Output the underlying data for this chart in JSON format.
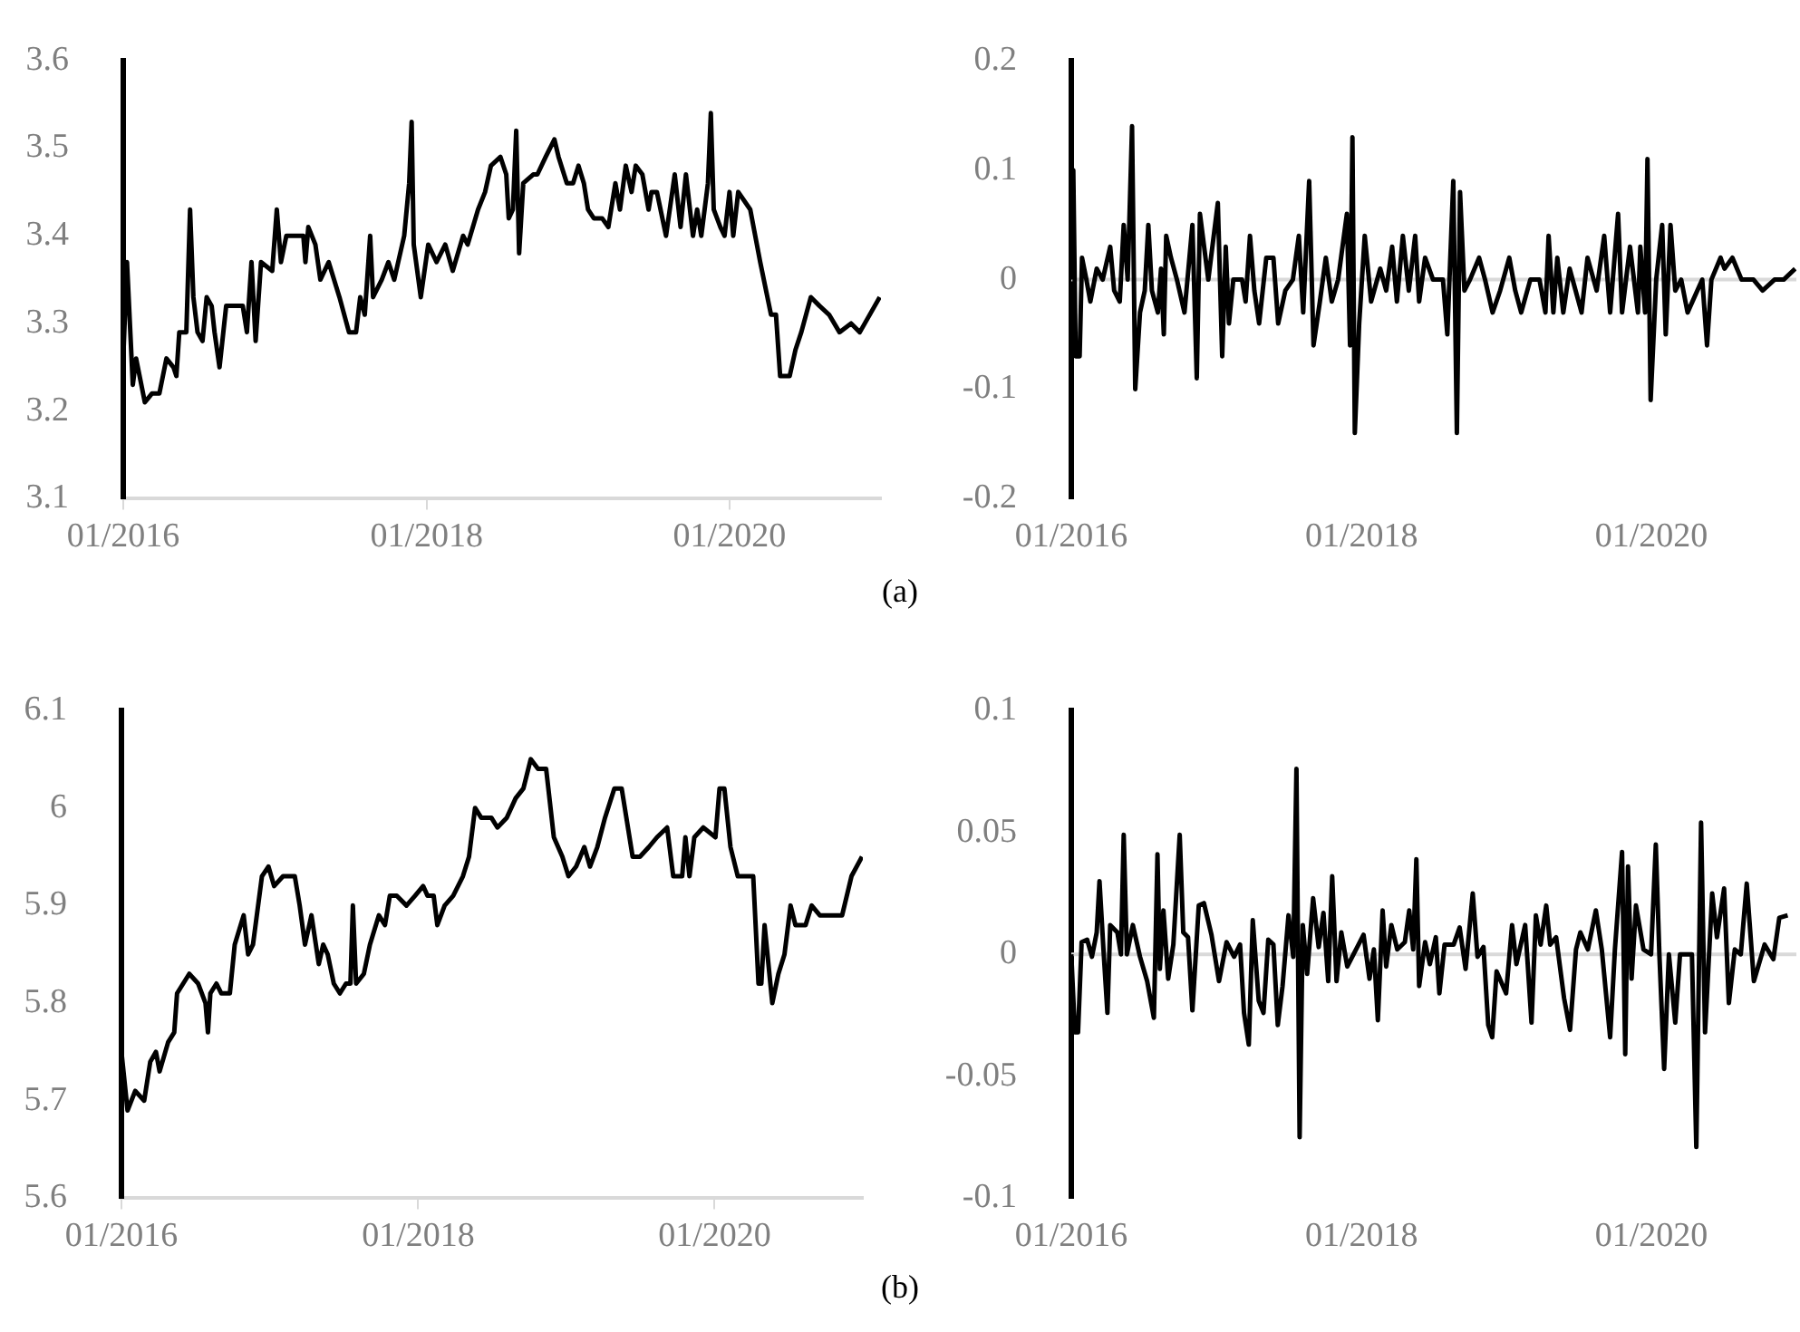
{
  "chart_data": [
    {
      "type": "line",
      "color": "#000000",
      "marker": "none",
      "line_style": "solid",
      "xlim": [
        "2016-01-01",
        "2020-12-31"
      ],
      "xticks": [
        {
          "value": "2016-01-01",
          "label": "01/2016"
        },
        {
          "value": "2018-01-01",
          "label": "01/2018"
        },
        {
          "value": "2020-01-01",
          "label": "01/2020"
        }
      ],
      "ylim": [
        3.1,
        3.6
      ],
      "yticks": [
        3.1,
        3.2,
        3.3,
        3.4,
        3.5,
        3.6
      ],
      "x": [
        "2016-01-01",
        "2016-01-10",
        "2016-01-24",
        "2016-02-01",
        "2016-02-22",
        "2016-03-10",
        "2016-03-28",
        "2016-04-14",
        "2016-05-01",
        "2016-05-08",
        "2016-05-15",
        "2016-06-01",
        "2016-06-10",
        "2016-06-18",
        "2016-06-28",
        "2016-07-10",
        "2016-07-20",
        "2016-08-01",
        "2016-08-08",
        "2016-08-20",
        "2016-09-05",
        "2016-10-15",
        "2016-10-25",
        "2016-11-05",
        "2016-11-15",
        "2016-11-28",
        "2016-12-25",
        "2017-01-05",
        "2017-01-15",
        "2017-01-28",
        "2017-03-10",
        "2017-03-15",
        "2017-03-22",
        "2017-04-08",
        "2017-04-20",
        "2017-05-10",
        "2017-06-05",
        "2017-06-28",
        "2017-07-15",
        "2017-07-25",
        "2017-08-05",
        "2017-08-18",
        "2017-08-25",
        "2017-09-15",
        "2017-10-01",
        "2017-10-15",
        "2017-11-08",
        "2017-11-20",
        "2017-11-26",
        "2017-12-01",
        "2017-12-18",
        "2018-01-05",
        "2018-01-25",
        "2018-02-15",
        "2018-03-05",
        "2018-03-30",
        "2018-04-10",
        "2018-05-05",
        "2018-05-22",
        "2018-06-05",
        "2018-06-28",
        "2018-07-12",
        "2018-07-18",
        "2018-07-28",
        "2018-08-05",
        "2018-08-12",
        "2018-08-22",
        "2018-09-15",
        "2018-09-25",
        "2018-10-15",
        "2018-11-05",
        "2018-11-15",
        "2018-12-05",
        "2018-12-20",
        "2019-01-02",
        "2019-01-15",
        "2019-01-25",
        "2019-02-08",
        "2019-02-28",
        "2019-03-15",
        "2019-04-01",
        "2019-04-12",
        "2019-04-26",
        "2019-05-10",
        "2019-05-20",
        "2019-06-05",
        "2019-06-20",
        "2019-06-27",
        "2019-07-10",
        "2019-08-01",
        "2019-08-22",
        "2019-09-05",
        "2019-09-18",
        "2019-10-05",
        "2019-10-15",
        "2019-10-25",
        "2019-11-10",
        "2019-11-17",
        "2019-11-24",
        "2019-12-10",
        "2019-12-20",
        "2020-01-01",
        "2020-01-10",
        "2020-01-22",
        "2020-02-20",
        "2020-03-15",
        "2020-04-10",
        "2020-04-22",
        "2020-05-02",
        "2020-05-25",
        "2020-06-08",
        "2020-06-22",
        "2020-07-15",
        "2020-08-05",
        "2020-08-28",
        "2020-09-22",
        "2020-10-20",
        "2020-11-10",
        "2020-12-28"
      ],
      "values": [
        3.26,
        3.37,
        3.23,
        3.26,
        3.21,
        3.22,
        3.22,
        3.26,
        3.25,
        3.24,
        3.29,
        3.29,
        3.43,
        3.33,
        3.29,
        3.28,
        3.33,
        3.32,
        3.29,
        3.25,
        3.32,
        3.32,
        3.29,
        3.37,
        3.28,
        3.37,
        3.36,
        3.43,
        3.37,
        3.4,
        3.4,
        3.37,
        3.41,
        3.39,
        3.35,
        3.37,
        3.33,
        3.29,
        3.29,
        3.33,
        3.31,
        3.4,
        3.33,
        3.35,
        3.37,
        3.35,
        3.4,
        3.46,
        3.53,
        3.39,
        3.33,
        3.39,
        3.37,
        3.39,
        3.36,
        3.4,
        3.39,
        3.43,
        3.45,
        3.48,
        3.49,
        3.47,
        3.42,
        3.43,
        3.52,
        3.38,
        3.46,
        3.47,
        3.47,
        3.49,
        3.51,
        3.49,
        3.46,
        3.46,
        3.48,
        3.46,
        3.43,
        3.42,
        3.42,
        3.41,
        3.46,
        3.43,
        3.48,
        3.45,
        3.48,
        3.47,
        3.43,
        3.45,
        3.45,
        3.4,
        3.47,
        3.41,
        3.47,
        3.4,
        3.43,
        3.4,
        3.46,
        3.54,
        3.43,
        3.41,
        3.4,
        3.45,
        3.4,
        3.45,
        3.43,
        3.37,
        3.31,
        3.31,
        3.24,
        3.24,
        3.27,
        3.29,
        3.33,
        3.32,
        3.31,
        3.29,
        3.3,
        3.29,
        3.33
      ]
    },
    {
      "type": "line",
      "color": "#000000",
      "marker": "none",
      "line_style": "solid",
      "xlim": [
        "2016-01-01",
        "2020-12-31"
      ],
      "xticks": [
        {
          "value": "2016-01-01",
          "label": "01/2016"
        },
        {
          "value": "2018-01-01",
          "label": "01/2018"
        },
        {
          "value": "2020-01-01",
          "label": "01/2020"
        }
      ],
      "ylim": [
        -0.2,
        0.2
      ],
      "yticks": [
        -0.2,
        -0.1,
        0,
        0.1,
        0.2
      ],
      "ref_lines": [
        {
          "axis": "y",
          "value": 0,
          "color": "#d9d9d9"
        }
      ],
      "annotations": [
        "(a)"
      ],
      "x": [
        "2016-01-01",
        "2016-01-06",
        "2016-01-12",
        "2016-01-22",
        "2016-01-28",
        "2016-02-08",
        "2016-02-18",
        "2016-03-05",
        "2016-03-20",
        "2016-04-08",
        "2016-04-18",
        "2016-05-02",
        "2016-05-12",
        "2016-05-22",
        "2016-06-02",
        "2016-06-10",
        "2016-06-22",
        "2016-07-04",
        "2016-07-13",
        "2016-07-22",
        "2016-08-06",
        "2016-08-14",
        "2016-08-21",
        "2016-08-27",
        "2016-09-08",
        "2016-09-23",
        "2016-10-12",
        "2016-11-01",
        "2016-11-12",
        "2016-11-20",
        "2016-12-11",
        "2017-01-04",
        "2017-01-15",
        "2017-01-24",
        "2017-02-01",
        "2017-02-12",
        "2017-03-06",
        "2017-03-15",
        "2017-03-26",
        "2017-04-06",
        "2017-04-18",
        "2017-05-06",
        "2017-05-24",
        "2017-06-05",
        "2017-06-23",
        "2017-07-12",
        "2017-07-27",
        "2017-08-07",
        "2017-08-22",
        "2017-09-02",
        "2017-09-18",
        "2017-10-03",
        "2017-10-18",
        "2017-11-03",
        "2017-11-25",
        "2017-12-03",
        "2017-12-09",
        "2017-12-15",
        "2017-12-26",
        "2018-01-09",
        "2018-01-25",
        "2018-02-17",
        "2018-03-04",
        "2018-03-19",
        "2018-03-31",
        "2018-04-15",
        "2018-04-30",
        "2018-05-16",
        "2018-05-26",
        "2018-06-10",
        "2018-06-30",
        "2018-07-25",
        "2018-08-05",
        "2018-08-20",
        "2018-08-29",
        "2018-09-06",
        "2018-09-17",
        "2018-10-01",
        "2018-10-24",
        "2018-11-08",
        "2018-11-27",
        "2018-12-16",
        "2019-01-08",
        "2019-01-23",
        "2019-02-07",
        "2019-03-02",
        "2019-03-25",
        "2019-04-09",
        "2019-04-17",
        "2019-04-29",
        "2019-05-09",
        "2019-05-24",
        "2019-06-09",
        "2019-07-09",
        "2019-07-24",
        "2019-08-16",
        "2019-09-04",
        "2019-09-19",
        "2019-10-09",
        "2019-10-19",
        "2019-11-08",
        "2019-11-28",
        "2019-12-04",
        "2019-12-16",
        "2019-12-22",
        "2019-12-30",
        "2020-01-13",
        "2020-01-28",
        "2020-02-06",
        "2020-02-18",
        "2020-03-01",
        "2020-03-16",
        "2020-04-01",
        "2020-05-08",
        "2020-05-20",
        "2020-05-31",
        "2020-06-23",
        "2020-07-03",
        "2020-07-23",
        "2020-08-15",
        "2020-09-14",
        "2020-10-07",
        "2020-11-06",
        "2020-11-29",
        "2020-12-28"
      ],
      "values": [
        0,
        0.1,
        -0.07,
        -0.07,
        0.02,
        0,
        -0.02,
        0.01,
        0,
        0.03,
        -0.01,
        -0.02,
        0.05,
        0,
        0.14,
        -0.1,
        -0.03,
        -0.01,
        0.05,
        -0.01,
        -0.03,
        0.01,
        -0.05,
        0.04,
        0.02,
        0,
        -0.03,
        0.05,
        -0.09,
        0.06,
        0,
        0.07,
        -0.07,
        0.03,
        -0.04,
        0,
        0,
        -0.02,
        0.04,
        -0.01,
        -0.04,
        0.02,
        0.02,
        -0.04,
        -0.01,
        0,
        0.04,
        -0.03,
        0.09,
        -0.06,
        -0.02,
        0.02,
        -0.02,
        0,
        0.06,
        -0.06,
        0.13,
        -0.14,
        -0.04,
        0.04,
        -0.02,
        0.01,
        -0.01,
        0.03,
        -0.02,
        0.04,
        -0.01,
        0.04,
        -0.02,
        0.02,
        0,
        0,
        -0.05,
        0.09,
        -0.14,
        0.08,
        -0.01,
        0,
        0.02,
        0,
        -0.03,
        -0.01,
        0.02,
        -0.01,
        -0.03,
        0,
        0,
        -0.03,
        0.04,
        -0.03,
        0.02,
        -0.03,
        0.01,
        -0.03,
        0.02,
        -0.01,
        0.04,
        -0.03,
        0.06,
        -0.03,
        0.03,
        -0.03,
        0.03,
        -0.03,
        0.11,
        -0.11,
        0,
        0.05,
        -0.05,
        0.05,
        -0.01,
        0,
        -0.03,
        0,
        -0.06,
        0,
        0.02,
        0.01,
        0.02,
        0,
        0,
        -0.01,
        0,
        0,
        0.01
      ]
    },
    {
      "type": "line",
      "color": "#000000",
      "marker": "none",
      "line_style": "solid",
      "xlim": [
        "2016-01-01",
        "2020-12-31"
      ],
      "xticks": [
        {
          "value": "2016-01-01",
          "label": "01/2016"
        },
        {
          "value": "2018-01-01",
          "label": "01/2018"
        },
        {
          "value": "2020-01-01",
          "label": "01/2020"
        }
      ],
      "ylim": [
        5.6,
        6.1
      ],
      "yticks": [
        5.6,
        5.7,
        5.8,
        5.9,
        6,
        6.1
      ],
      "x": [
        "2016-01-01",
        "2016-01-16",
        "2016-02-04",
        "2016-02-26",
        "2016-03-12",
        "2016-03-26",
        "2016-04-04",
        "2016-04-25",
        "2016-05-10",
        "2016-05-17",
        "2016-06-01",
        "2016-06-16",
        "2016-07-08",
        "2016-07-26",
        "2016-08-01",
        "2016-08-07",
        "2016-08-22",
        "2016-09-03",
        "2016-09-24",
        "2016-10-06",
        "2016-10-28",
        "2016-11-08",
        "2016-11-20",
        "2016-12-12",
        "2016-12-28",
        "2017-01-11",
        "2017-02-02",
        "2017-03-03",
        "2017-03-15",
        "2017-03-28",
        "2017-04-13",
        "2017-05-01",
        "2017-05-12",
        "2017-05-23",
        "2017-06-07",
        "2017-06-22",
        "2017-07-07",
        "2017-07-18",
        "2017-07-24",
        "2017-08-01",
        "2017-08-20",
        "2017-09-04",
        "2017-09-26",
        "2017-10-11",
        "2017-10-23",
        "2017-11-09",
        "2017-12-03",
        "2017-12-24",
        "2018-01-13",
        "2018-01-24",
        "2018-02-08",
        "2018-02-17",
        "2018-03-07",
        "2018-03-28",
        "2018-04-21",
        "2018-05-06",
        "2018-05-21",
        "2018-06-05",
        "2018-06-30",
        "2018-07-15",
        "2018-08-07",
        "2018-08-29",
        "2018-09-17",
        "2018-10-05",
        "2018-10-23",
        "2018-11-12",
        "2018-12-01",
        "2018-12-22",
        "2019-01-06",
        "2019-01-25",
        "2019-02-14",
        "2019-02-28",
        "2019-03-18",
        "2019-04-06",
        "2019-04-29",
        "2019-05-17",
        "2019-06-13",
        "2019-07-01",
        "2019-07-23",
        "2019-08-12",
        "2019-09-06",
        "2019-09-21",
        "2019-10-13",
        "2019-10-21",
        "2019-10-31",
        "2019-11-12",
        "2019-12-04",
        "2020-01-03",
        "2020-01-13",
        "2020-01-25",
        "2020-02-09",
        "2020-02-27",
        "2020-04-05",
        "2020-04-18",
        "2020-04-25",
        "2020-05-03",
        "2020-05-22",
        "2020-06-06",
        "2020-06-21",
        "2020-07-06",
        "2020-07-18",
        "2020-08-12",
        "2020-08-27",
        "2020-09-16",
        "2020-10-11",
        "2020-11-03",
        "2020-11-10",
        "2020-12-03",
        "2020-12-29"
      ],
      "values": [
        5.75,
        5.69,
        5.71,
        5.7,
        5.74,
        5.75,
        5.73,
        5.76,
        5.77,
        5.81,
        5.82,
        5.83,
        5.82,
        5.8,
        5.77,
        5.81,
        5.82,
        5.81,
        5.81,
        5.86,
        5.89,
        5.85,
        5.86,
        5.93,
        5.94,
        5.92,
        5.93,
        5.93,
        5.9,
        5.86,
        5.89,
        5.84,
        5.86,
        5.85,
        5.82,
        5.81,
        5.82,
        5.82,
        5.9,
        5.82,
        5.83,
        5.86,
        5.89,
        5.88,
        5.91,
        5.91,
        5.9,
        5.91,
        5.92,
        5.91,
        5.91,
        5.88,
        5.9,
        5.91,
        5.93,
        5.95,
        6,
        5.99,
        5.99,
        5.98,
        5.99,
        6.01,
        6.02,
        6.05,
        6.04,
        6.04,
        5.97,
        5.95,
        5.93,
        5.94,
        5.96,
        5.94,
        5.96,
        5.99,
        6.02,
        6.02,
        5.95,
        5.95,
        5.96,
        5.97,
        5.98,
        5.93,
        5.93,
        5.97,
        5.93,
        5.97,
        5.98,
        5.97,
        6.02,
        6.02,
        5.96,
        5.93,
        5.93,
        5.82,
        5.82,
        5.88,
        5.8,
        5.83,
        5.85,
        5.9,
        5.88,
        5.88,
        5.9,
        5.89,
        5.89,
        5.89,
        5.89,
        5.93,
        5.95
      ]
    },
    {
      "type": "line",
      "color": "#000000",
      "marker": "none",
      "line_style": "solid",
      "xlim": [
        "2016-01-01",
        "2020-12-31"
      ],
      "xticks": [
        {
          "value": "2016-01-01",
          "label": "01/2016"
        },
        {
          "value": "2018-01-01",
          "label": "01/2018"
        },
        {
          "value": "2020-01-01",
          "label": "01/2020"
        }
      ],
      "ylim": [
        -0.1,
        0.1
      ],
      "yticks": [
        -0.1,
        -0.05,
        0,
        0.05,
        0.1
      ],
      "ref_lines": [
        {
          "axis": "y",
          "value": 0,
          "color": "#d9d9d9"
        }
      ],
      "annotations": [
        "(b)"
      ],
      "x": [
        "2016-01-01",
        "2016-01-10",
        "2016-01-18",
        "2016-01-27",
        "2016-02-10",
        "2016-02-22",
        "2016-03-05",
        "2016-03-12",
        "2016-03-22",
        "2016-04-01",
        "2016-04-08",
        "2016-04-26",
        "2016-05-05",
        "2016-05-12",
        "2016-05-20",
        "2016-06-04",
        "2016-06-22",
        "2016-07-10",
        "2016-07-27",
        "2016-08-05",
        "2016-08-11",
        "2016-08-20",
        "2016-09-01",
        "2016-09-14",
        "2016-09-30",
        "2016-10-09",
        "2016-10-21",
        "2016-11-01",
        "2016-11-17",
        "2016-11-30",
        "2016-12-19",
        "2017-01-07",
        "2017-01-26",
        "2017-02-14",
        "2017-03-01",
        "2017-03-11",
        "2017-03-23",
        "2017-04-02",
        "2017-04-17",
        "2017-04-29",
        "2017-05-11",
        "2017-05-24",
        "2017-06-04",
        "2017-06-16",
        "2017-07-01",
        "2017-07-13",
        "2017-07-21",
        "2017-07-29",
        "2017-08-06",
        "2017-08-17",
        "2017-09-01",
        "2017-09-15",
        "2017-09-27",
        "2017-10-09",
        "2017-10-19",
        "2017-10-30",
        "2017-11-11",
        "2017-11-26",
        "2017-12-18",
        "2018-01-06",
        "2018-01-21",
        "2018-02-01",
        "2018-02-11",
        "2018-02-23",
        "2018-03-04",
        "2018-03-17",
        "2018-04-01",
        "2018-04-20",
        "2018-05-01",
        "2018-05-11",
        "2018-05-19",
        "2018-05-26",
        "2018-06-10",
        "2018-06-22",
        "2018-07-07",
        "2018-07-16",
        "2018-07-29",
        "2018-08-21",
        "2018-09-05",
        "2018-09-20",
        "2018-10-08",
        "2018-10-20",
        "2018-11-04",
        "2018-11-16",
        "2018-11-26",
        "2018-12-07",
        "2018-12-31",
        "2019-01-15",
        "2019-01-26",
        "2019-02-17",
        "2019-03-05",
        "2019-03-16",
        "2019-03-28",
        "2019-04-11",
        "2019-04-21",
        "2019-05-06",
        "2019-05-26",
        "2019-06-10",
        "2019-06-25",
        "2019-07-06",
        "2019-07-25",
        "2019-08-14",
        "2019-08-29",
        "2019-09-19",
        "2019-10-01",
        "2019-10-19",
        "2019-10-27",
        "2019-11-03",
        "2019-11-12",
        "2019-11-23",
        "2019-12-12",
        "2019-12-31",
        "2020-01-12",
        "2020-01-21",
        "2020-02-02",
        "2020-02-14",
        "2020-03-01",
        "2020-03-13",
        "2020-04-12",
        "2020-04-23",
        "2020-05-05",
        "2020-05-15",
        "2020-06-02",
        "2020-06-14",
        "2020-07-02",
        "2020-07-14",
        "2020-07-29",
        "2020-08-13",
        "2020-08-28",
        "2020-09-15",
        "2020-10-12",
        "2020-11-03",
        "2020-11-18",
        "2020-12-09"
      ],
      "values": [
        0,
        -0.032,
        -0.032,
        0.005,
        0.006,
        -0.001,
        0.009,
        0.03,
        0.002,
        -0.024,
        0.012,
        0.009,
        0,
        0.049,
        0,
        0.012,
        -0.001,
        -0.011,
        -0.026,
        0.041,
        -0.006,
        0.018,
        -0.01,
        0.004,
        0.049,
        0.009,
        0.007,
        -0.023,
        0.02,
        0.021,
        0.008,
        -0.011,
        0.005,
        -0.001,
        0.004,
        -0.024,
        -0.037,
        0.014,
        -0.019,
        -0.024,
        0.006,
        0.004,
        -0.029,
        -0.013,
        0.016,
        -0.001,
        0.076,
        -0.075,
        0.012,
        -0.008,
        0.023,
        0.003,
        0.017,
        -0.011,
        0.032,
        -0.011,
        0.009,
        -0.005,
        0.002,
        0.008,
        -0.01,
        0.002,
        -0.027,
        0.018,
        -0.005,
        0.012,
        0.002,
        0.005,
        0.018,
        0.002,
        0.039,
        -0.013,
        0.005,
        -0.004,
        0.007,
        -0.016,
        0.004,
        0.004,
        0.011,
        -0.006,
        0.025,
        -0.001,
        0.003,
        -0.029,
        -0.034,
        -0.007,
        -0.016,
        0.012,
        -0.004,
        0.012,
        -0.028,
        0.016,
        0.004,
        0.02,
        0.004,
        0.007,
        -0.018,
        -0.031,
        0.002,
        0.009,
        0.002,
        0.018,
        0.002,
        -0.034,
        0.002,
        0.042,
        -0.041,
        0.036,
        -0.01,
        0.02,
        0.002,
        0,
        0.045,
        0,
        -0.047,
        0,
        -0.028,
        0,
        0,
        -0.079,
        0.054,
        -0.032,
        0.025,
        0.007,
        0.027,
        -0.02,
        0.002,
        0,
        0.029,
        -0.011,
        0.004,
        -0.002,
        0.015,
        0.016
      ]
    }
  ]
}
